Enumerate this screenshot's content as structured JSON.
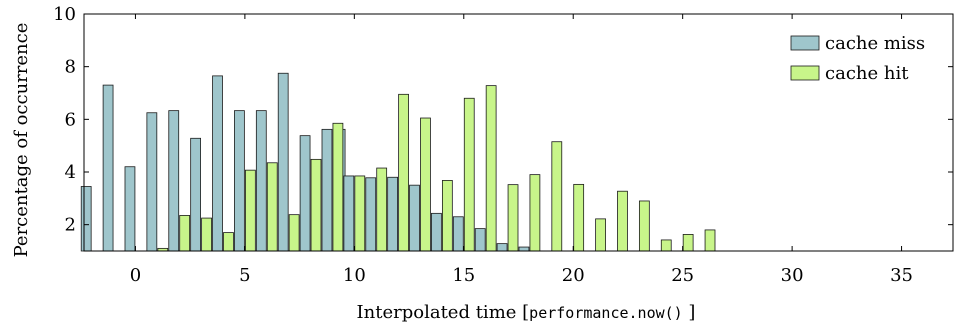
{
  "chart_data": {
    "type": "bar",
    "xlabel_prefix": "Interpolated time [",
    "xlabel_code": "performance.now()",
    "xlabel_suffix": " ]",
    "ylabel": "Percentage of occurrence",
    "xlim": [
      -2.35,
      37.35
    ],
    "ylim": [
      1,
      10
    ],
    "xticks": [
      0,
      5,
      10,
      15,
      20,
      25,
      30,
      35
    ],
    "yticks": [
      2,
      4,
      6,
      8,
      10
    ],
    "grid": false,
    "legend_position": "top-right",
    "series": [
      {
        "name": "cache miss",
        "color": "#9fc6cc",
        "x": [
          -2,
          -1,
          0,
          1,
          2,
          3,
          4,
          5,
          6,
          7,
          8,
          9,
          9.6,
          10,
          11,
          12,
          13,
          14,
          15,
          16,
          17,
          18
        ],
        "values": [
          3.45,
          7.3,
          4.2,
          6.25,
          6.33,
          5.28,
          7.65,
          6.33,
          6.33,
          7.75,
          5.38,
          5.62,
          5.62,
          3.85,
          3.78,
          3.8,
          3.5,
          2.43,
          2.3,
          1.85,
          1.28,
          1.15
        ]
      },
      {
        "name": "cache hit",
        "color": "#c8f58a",
        "x": [
          1,
          2,
          3,
          4,
          5,
          6,
          7,
          8,
          9,
          10,
          11,
          12,
          13,
          14,
          15,
          16,
          17,
          18,
          19,
          20,
          21,
          22,
          23,
          24,
          25,
          26
        ],
        "values": [
          1.1,
          2.35,
          2.25,
          1.7,
          4.07,
          4.35,
          2.38,
          4.48,
          5.85,
          3.85,
          4.15,
          6.95,
          6.05,
          3.68,
          6.8,
          7.28,
          3.52,
          3.9,
          5.15,
          3.53,
          2.22,
          3.27,
          2.9,
          1.42,
          1.63,
          1.8
        ]
      }
    ]
  }
}
